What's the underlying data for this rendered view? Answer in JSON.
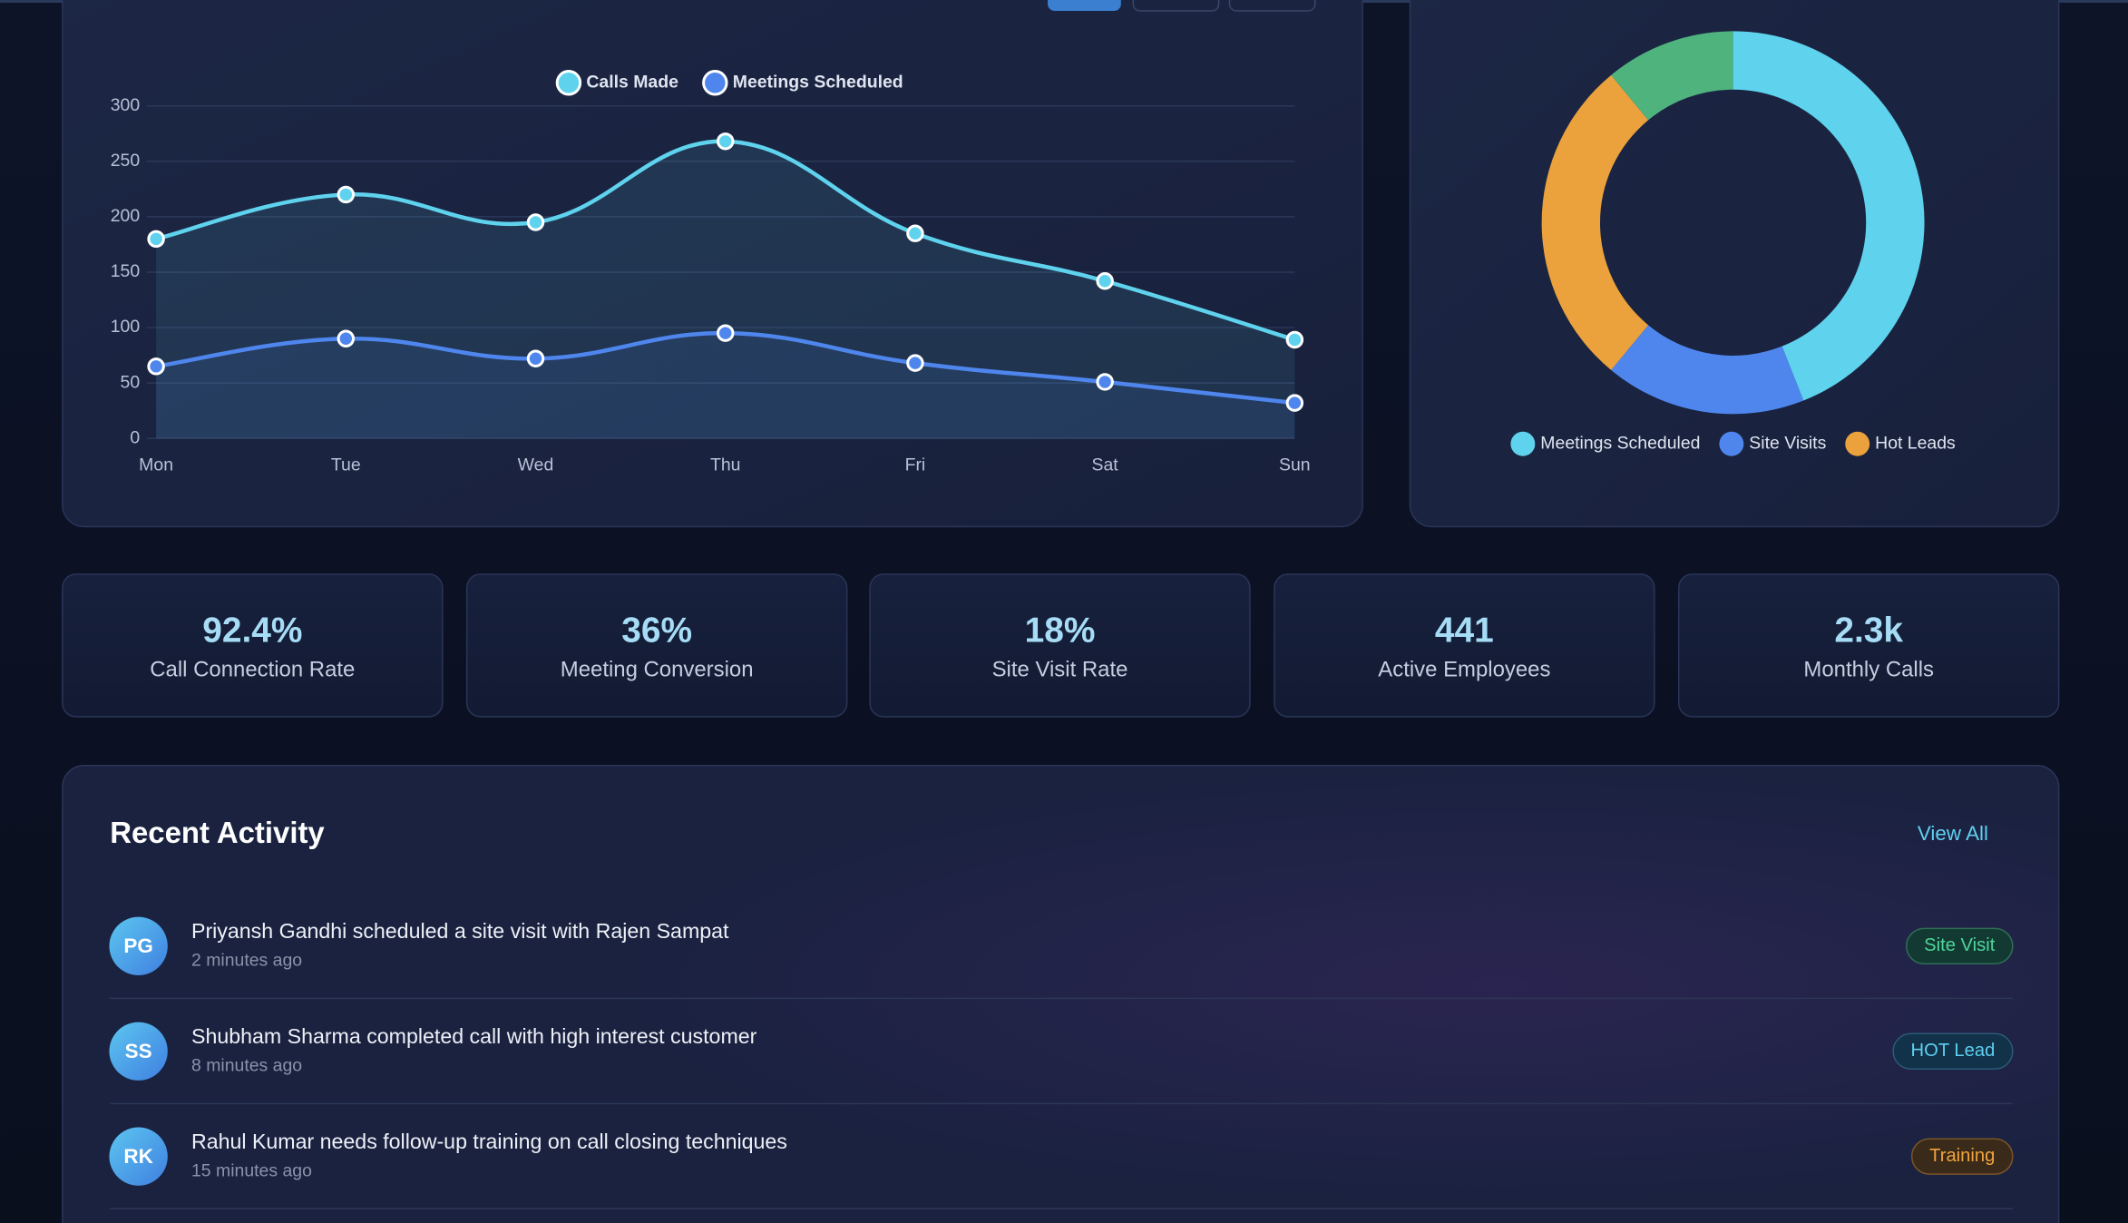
{
  "chart_data": [
    {
      "type": "line",
      "categories": [
        "Mon",
        "Tue",
        "Wed",
        "Thu",
        "Fri",
        "Sat",
        "Sun"
      ],
      "series": [
        {
          "name": "Calls Made",
          "color": "#5fd3ee",
          "values": [
            180,
            220,
            195,
            268,
            185,
            142,
            89
          ]
        },
        {
          "name": "Meetings Scheduled",
          "color": "#4f86ee",
          "values": [
            65,
            90,
            72,
            95,
            68,
            51,
            32
          ]
        }
      ],
      "ylim": [
        0,
        300
      ],
      "yticks": [
        0,
        50,
        100,
        150,
        200,
        250,
        300
      ],
      "grid": true
    },
    {
      "type": "doughnut",
      "categories": [
        "Meetings Scheduled",
        "Site Visits",
        "Hot Leads",
        null
      ],
      "values": [
        44,
        17,
        28,
        11
      ],
      "colors": [
        "#5fd3ee",
        "#4f86ee",
        "#eba23c",
        "#4fb37e"
      ]
    }
  ],
  "stats": [
    {
      "value": "92.4%",
      "label": "Call Connection Rate"
    },
    {
      "value": "36%",
      "label": "Meeting Conversion"
    },
    {
      "value": "18%",
      "label": "Site Visit Rate"
    },
    {
      "value": "441",
      "label": "Active Employees"
    },
    {
      "value": "2.3k",
      "label": "Monthly Calls"
    }
  ],
  "activity": {
    "title": "Recent Activity",
    "view_all": "View All",
    "items": [
      {
        "initials": "PG",
        "text": "Priyansh Gandhi scheduled a site visit with Rajen Sampat",
        "time": "2 minutes ago",
        "tag": "Site Visit"
      },
      {
        "initials": "SS",
        "text": "Shubham Sharma completed call with high interest customer",
        "time": "8 minutes ago",
        "tag": "HOT Lead"
      },
      {
        "initials": "RK",
        "text": "Rahul Kumar needs follow-up training on call closing techniques",
        "time": "15 minutes ago",
        "tag": "Training"
      }
    ]
  }
}
